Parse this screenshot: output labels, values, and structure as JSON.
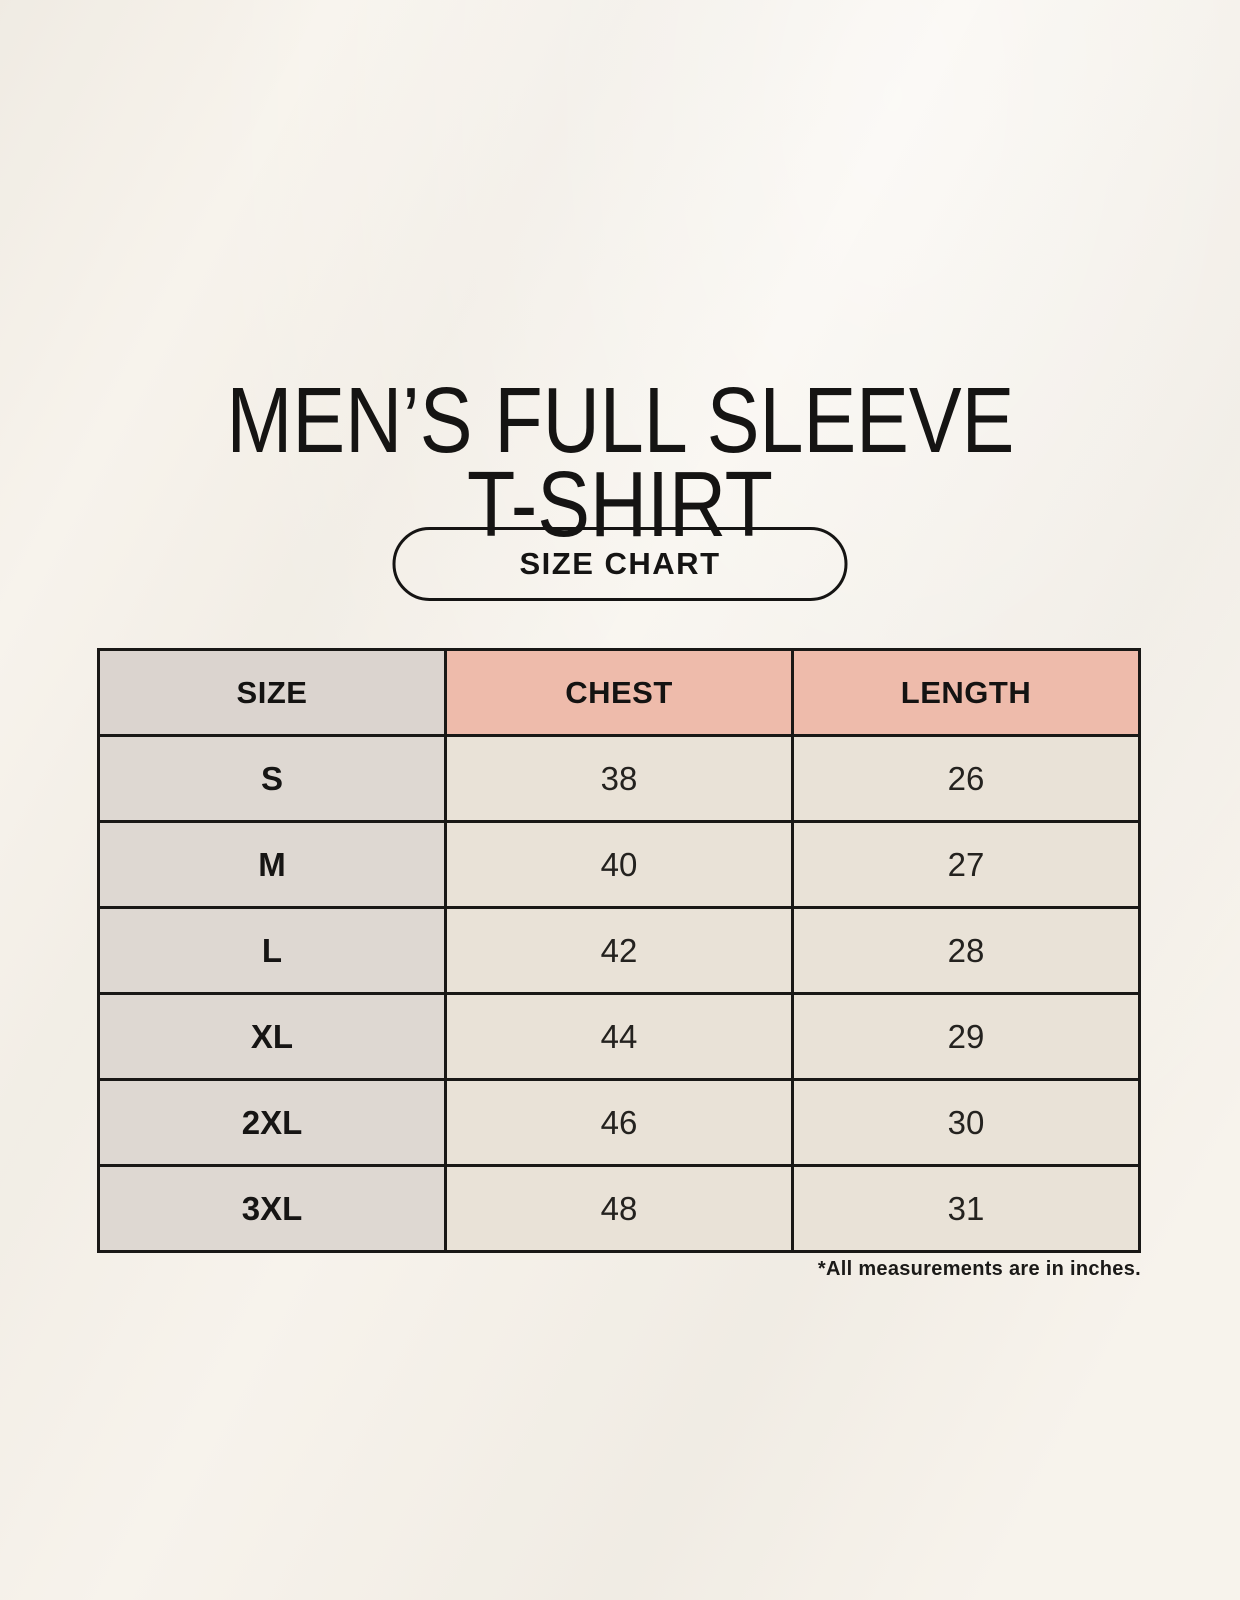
{
  "page": {
    "title_line1": "MEN’S FULL SLEEVE",
    "title_line2": "T-SHIRT",
    "badge_label": "SIZE CHART",
    "footnote": "*All measurements are in inches."
  },
  "size_table": {
    "columns": [
      "SIZE",
      "CHEST",
      "LENGTH"
    ],
    "rows": [
      [
        "S",
        "38",
        "26"
      ],
      [
        "M",
        "40",
        "27"
      ],
      [
        "L",
        "42",
        "28"
      ],
      [
        "XL",
        "44",
        "29"
      ],
      [
        "2XL",
        "46",
        "30"
      ],
      [
        "3XL",
        "48",
        "31"
      ]
    ]
  },
  "colors": {
    "page_background": "#f7f3ec",
    "header_size_bg": "#dbd4cf",
    "header_accent_bg": "#eebbab",
    "body_size_col_bg": "#ded8d2",
    "body_value_col_bg": "#e9e2d7",
    "table_border": "#191816",
    "text": "#151413"
  },
  "chart_data": {
    "type": "table",
    "title": "MEN’S FULL SLEEVE T-SHIRT — SIZE CHART",
    "columns": [
      "SIZE",
      "CHEST",
      "LENGTH"
    ],
    "rows": [
      {
        "size": "S",
        "chest": 38,
        "length": 26
      },
      {
        "size": "M",
        "chest": 40,
        "length": 27
      },
      {
        "size": "L",
        "chest": 42,
        "length": 28
      },
      {
        "size": "XL",
        "chest": 44,
        "length": 29
      },
      {
        "size": "2XL",
        "chest": 46,
        "length": 30
      },
      {
        "size": "3XL",
        "chest": 48,
        "length": 31
      }
    ],
    "units": "inches",
    "note": "*All measurements are in inches."
  }
}
